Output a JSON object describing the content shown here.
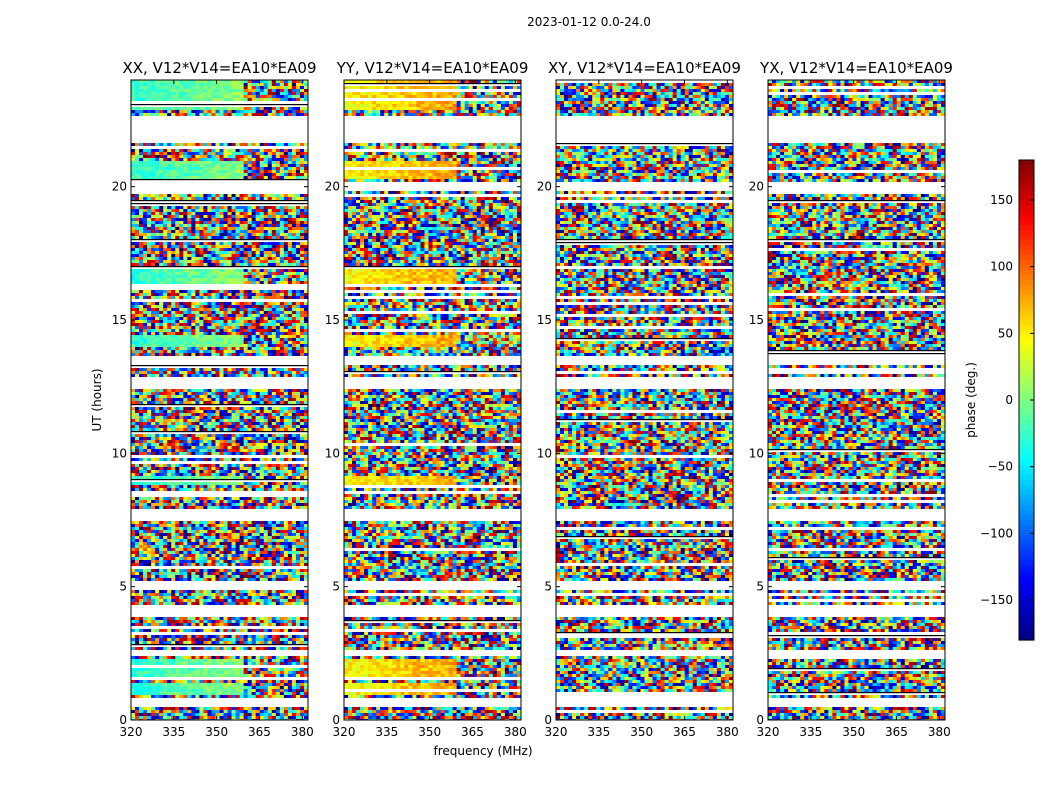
{
  "figure": {
    "suptitle": "2023-01-12 0.0-24.0",
    "xlabel": "frequency (MHz)",
    "ylabel": "UT (hours)"
  },
  "chart_data": {
    "type": "heatmap",
    "xlim": [
      320,
      382
    ],
    "ylim": [
      0,
      24
    ],
    "xticks": [
      320,
      335,
      350,
      365,
      380
    ],
    "yticks": [
      0,
      5,
      10,
      15,
      20
    ],
    "panels": [
      {
        "title": "XX, V12*V14=EA10*EA09",
        "polarization": "XX",
        "coherent": true
      },
      {
        "title": "YY, V12*V14=EA10*EA09",
        "polarization": "YY",
        "coherent": true
      },
      {
        "title": "XY, V12*V14=EA10*EA09",
        "polarization": "XY",
        "coherent": false
      },
      {
        "title": "YX, V12*V14=EA10*EA09",
        "polarization": "YX",
        "coherent": false
      }
    ],
    "colorbar": {
      "label": "phase (deg.)",
      "vmin": -180,
      "vmax": 180,
      "ticks": [
        -150,
        -100,
        -50,
        0,
        50,
        100,
        150
      ],
      "cmap": "jet"
    },
    "flagged_ut_bands": [
      [
        21.6,
        22.6
      ],
      [
        19.8,
        20.2
      ],
      [
        13.3,
        13.7
      ],
      [
        12.4,
        12.9
      ],
      [
        7.5,
        7.9
      ],
      [
        4.9,
        5.2
      ],
      [
        3.9,
        4.3
      ],
      [
        2.4,
        2.6
      ],
      [
        0.5,
        0.8
      ]
    ],
    "coherent_ut_bands": [
      [
        22.9,
        24.0
      ],
      [
        20.3,
        21.0
      ],
      [
        16.3,
        17.0
      ],
      [
        14.0,
        14.4
      ],
      [
        8.8,
        9.1
      ],
      [
        0.9,
        1.4
      ],
      [
        1.6,
        2.3
      ]
    ]
  },
  "colors": {
    "jet": [
      "#00007f",
      "#0000ff",
      "#007fff",
      "#00ffff",
      "#7fff7f",
      "#ffff00",
      "#ff7f00",
      "#ff0000",
      "#7f0000"
    ]
  }
}
